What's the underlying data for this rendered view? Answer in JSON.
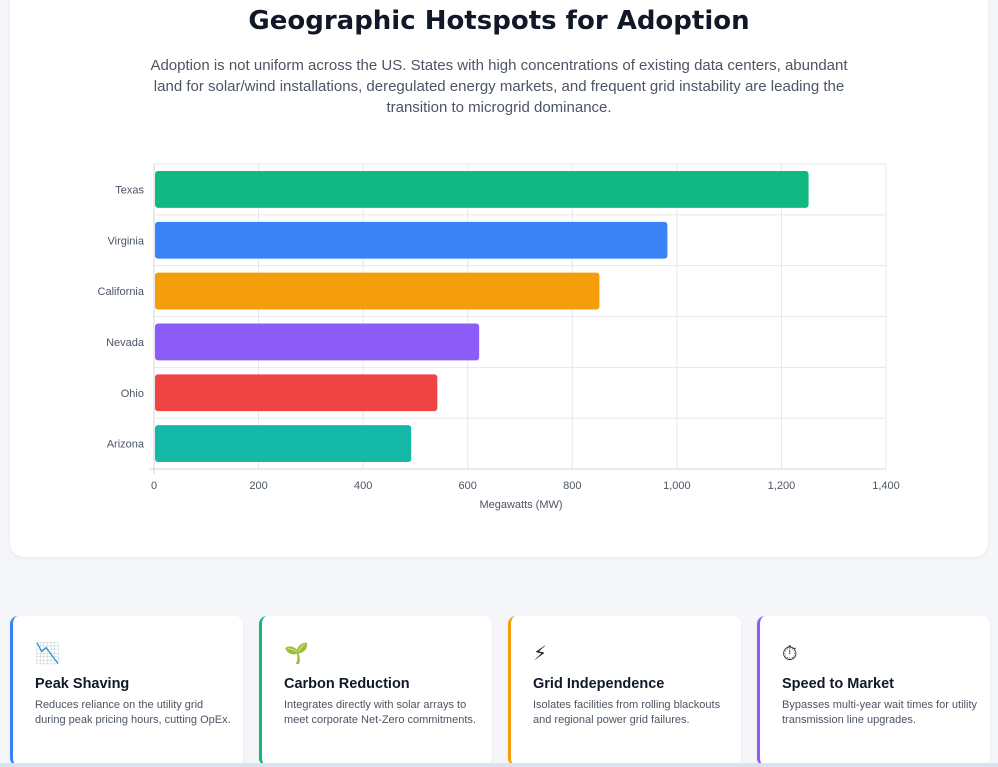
{
  "header": {
    "title": "Geographic Hotspots for Adoption",
    "subtitle": "Adoption is not uniform across the US. States with high concentrations of existing data centers, abundant land for solar/wind installations, deregulated energy markets, and frequent grid instability are leading the transition to microgrid dominance."
  },
  "chart_data": {
    "type": "bar",
    "orientation": "horizontal",
    "categories": [
      "Texas",
      "Virginia",
      "California",
      "Nevada",
      "Ohio",
      "Arizona"
    ],
    "values": [
      1250,
      980,
      850,
      620,
      540,
      490
    ],
    "colors": [
      "#10b981",
      "#3b82f6",
      "#f59e0b",
      "#8b5cf6",
      "#ef4444",
      "#14b8a6"
    ],
    "xlabel": "Megawatts (MW)",
    "ylabel": "",
    "xlim": [
      0,
      1400
    ],
    "xticks": [
      0,
      200,
      400,
      600,
      800,
      1000,
      1200,
      1400
    ],
    "xtick_labels": [
      "0",
      "200",
      "400",
      "600",
      "800",
      "1,000",
      "1,200",
      "1,400"
    ],
    "grid": true,
    "legend": "none"
  },
  "cards": [
    {
      "icon": "chart-decreasing-icon",
      "glyph": "📉",
      "title": "Peak Shaving",
      "text": "Reduces reliance on the utility grid during peak pricing hours, cutting OpEx.",
      "color": "#3b82f6"
    },
    {
      "icon": "seedling-icon",
      "glyph": "🌱",
      "title": "Carbon Reduction",
      "text": "Integrates directly with solar arrays to meet corporate Net-Zero commitments.",
      "color": "#10b981"
    },
    {
      "icon": "lightning-icon",
      "glyph": "⚡",
      "title": "Grid Independence",
      "text": "Isolates facilities from rolling blackouts and regional power grid failures.",
      "color": "#f59e0b"
    },
    {
      "icon": "stopwatch-icon",
      "glyph": "⏱",
      "title": "Speed to Market",
      "text": "Bypasses multi-year wait times for utility transmission line upgrades.",
      "color": "#8b5cf6"
    }
  ]
}
